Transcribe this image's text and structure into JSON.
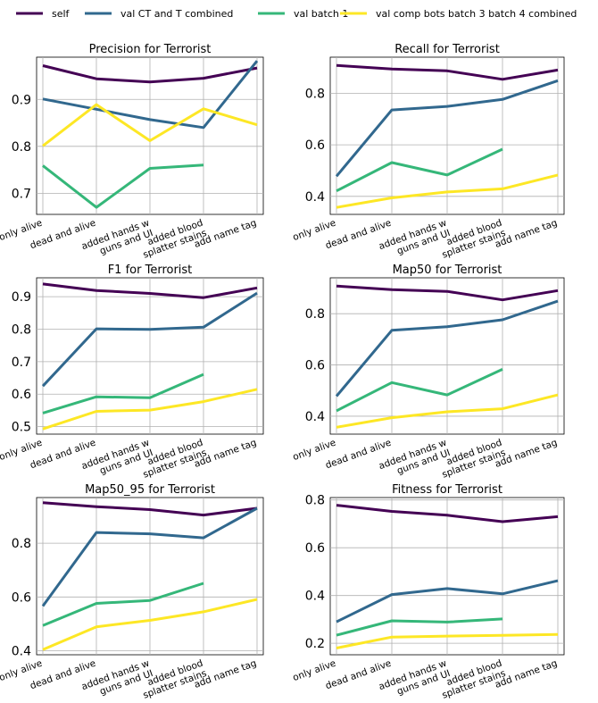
{
  "legend": {
    "items": [
      {
        "label": "self",
        "color": "#440154"
      },
      {
        "label": "val CT and T combined",
        "color": "#31688e"
      },
      {
        "label": "val batch 1",
        "color": "#35b779"
      },
      {
        "label": "val comp bots batch 3 batch 4 combined",
        "color": "#fde725"
      }
    ]
  },
  "chart_data": [
    {
      "type": "line",
      "title": "Precision for Terrorist",
      "categories": [
        [
          "only alive"
        ],
        [
          "dead and alive"
        ],
        [
          "added hands w",
          "guns and UI"
        ],
        [
          "added blood",
          "splatter stains"
        ],
        [
          "add name tag"
        ]
      ],
      "ylim": [
        0.655,
        0.99
      ],
      "yticks": [
        0.7,
        0.8,
        0.9
      ],
      "ytick_labels": [
        "0.7",
        "0.8",
        "0.9"
      ],
      "series": [
        {
          "name": "self",
          "color": "#440154",
          "values": [
            0.972,
            0.944,
            0.937,
            0.945,
            0.967
          ]
        },
        {
          "name": "val CT and T combined",
          "color": "#31688e",
          "values": [
            0.901,
            0.879,
            0.857,
            0.84,
            0.982
          ]
        },
        {
          "name": "val batch 1",
          "color": "#35b779",
          "values": [
            0.759,
            0.67,
            0.753,
            0.76,
            null
          ]
        },
        {
          "name": "val comp bots batch 3 batch 4 combined",
          "color": "#fde725",
          "values": [
            0.801,
            0.889,
            0.812,
            0.88,
            0.846
          ]
        }
      ]
    },
    {
      "type": "line",
      "title": "Recall for Terrorist",
      "categories": [
        [
          "only alive"
        ],
        [
          "dead and alive"
        ],
        [
          "added hands w",
          "guns and UI"
        ],
        [
          "added blood",
          "splatter stains"
        ],
        [
          "add name tag"
        ]
      ],
      "ylim": [
        0.33,
        0.94
      ],
      "yticks": [
        0.4,
        0.6,
        0.8
      ],
      "ytick_labels": [
        "0.4",
        "0.6",
        "0.8"
      ],
      "series": [
        {
          "name": "self",
          "color": "#440154",
          "values": [
            0.908,
            0.894,
            0.887,
            0.854,
            0.89
          ]
        },
        {
          "name": "val CT and T combined",
          "color": "#31688e",
          "values": [
            0.478,
            0.735,
            0.749,
            0.776,
            0.849
          ]
        },
        {
          "name": "val batch 1",
          "color": "#35b779",
          "values": [
            0.421,
            0.531,
            0.483,
            0.583,
            null
          ]
        },
        {
          "name": "val comp bots batch 3 batch 4 combined",
          "color": "#fde725",
          "values": [
            0.357,
            0.394,
            0.417,
            0.429,
            0.483
          ]
        }
      ]
    },
    {
      "type": "line",
      "title": "F1 for Terrorist",
      "categories": [
        [
          "only alive"
        ],
        [
          "dead and alive"
        ],
        [
          "added hands w",
          "guns and UI"
        ],
        [
          "added blood",
          "splatter stains"
        ],
        [
          "add name tag"
        ]
      ],
      "ylim": [
        0.477,
        0.958
      ],
      "yticks": [
        0.5,
        0.6,
        0.7,
        0.8,
        0.9
      ],
      "ytick_labels": [
        "0.5",
        "0.6",
        "0.7",
        "0.8",
        "0.9"
      ],
      "series": [
        {
          "name": "self",
          "color": "#440154",
          "values": [
            0.939,
            0.919,
            0.91,
            0.897,
            0.927
          ]
        },
        {
          "name": "val CT and T combined",
          "color": "#31688e",
          "values": [
            0.625,
            0.801,
            0.799,
            0.806,
            0.911
          ]
        },
        {
          "name": "val batch 1",
          "color": "#35b779",
          "values": [
            0.542,
            0.592,
            0.589,
            0.661,
            null
          ]
        },
        {
          "name": "val comp bots batch 3 batch 4 combined",
          "color": "#fde725",
          "values": [
            0.493,
            0.547,
            0.551,
            0.577,
            0.615
          ]
        }
      ]
    },
    {
      "type": "line",
      "title": "Map50 for Terrorist",
      "categories": [
        [
          "only alive"
        ],
        [
          "dead and alive"
        ],
        [
          "added hands w",
          "guns and UI"
        ],
        [
          "added blood",
          "splatter stains"
        ],
        [
          "add name tag"
        ]
      ],
      "ylim": [
        0.33,
        0.94
      ],
      "yticks": [
        0.4,
        0.6,
        0.8
      ],
      "ytick_labels": [
        "0.4",
        "0.6",
        "0.8"
      ],
      "series": [
        {
          "name": "self",
          "color": "#440154",
          "values": [
            0.908,
            0.894,
            0.887,
            0.854,
            0.89
          ]
        },
        {
          "name": "val CT and T combined",
          "color": "#31688e",
          "values": [
            0.478,
            0.735,
            0.749,
            0.776,
            0.849
          ]
        },
        {
          "name": "val batch 1",
          "color": "#35b779",
          "values": [
            0.421,
            0.531,
            0.483,
            0.583,
            null
          ]
        },
        {
          "name": "val comp bots batch 3 batch 4 combined",
          "color": "#fde725",
          "values": [
            0.357,
            0.394,
            0.417,
            0.429,
            0.483
          ]
        }
      ]
    },
    {
      "type": "line",
      "title": "Map50_95 for Terrorist",
      "categories": [
        [
          "only alive"
        ],
        [
          "dead and alive"
        ],
        [
          "added hands w",
          "guns and UI"
        ],
        [
          "added blood",
          "splatter stains"
        ],
        [
          "add name tag"
        ]
      ],
      "ylim": [
        0.385,
        0.97
      ],
      "yticks": [
        0.4,
        0.6,
        0.8
      ],
      "ytick_labels": [
        "0.4",
        "0.6",
        "0.8"
      ],
      "series": [
        {
          "name": "self",
          "color": "#440154",
          "values": [
            0.951,
            0.936,
            0.925,
            0.905,
            0.93
          ]
        },
        {
          "name": "val CT and T combined",
          "color": "#31688e",
          "values": [
            0.566,
            0.84,
            0.835,
            0.82,
            0.93
          ]
        },
        {
          "name": "val batch 1",
          "color": "#35b779",
          "values": [
            0.494,
            0.576,
            0.587,
            0.651,
            null
          ]
        },
        {
          "name": "val comp bots batch 3 batch 4 combined",
          "color": "#fde725",
          "values": [
            0.404,
            0.489,
            0.513,
            0.545,
            0.591
          ]
        }
      ]
    },
    {
      "type": "line",
      "title": "Fitness for Terrorist",
      "categories": [
        [
          "only alive"
        ],
        [
          "dead and alive"
        ],
        [
          "added hands w",
          "guns and UI"
        ],
        [
          "added blood",
          "splatter stains"
        ],
        [
          "add name tag"
        ]
      ],
      "ylim": [
        0.152,
        0.81
      ],
      "yticks": [
        0.2,
        0.4,
        0.6,
        0.8
      ],
      "ytick_labels": [
        "0.2",
        "0.4",
        "0.6",
        "0.8"
      ],
      "series": [
        {
          "name": "self",
          "color": "#440154",
          "values": [
            0.778,
            0.752,
            0.736,
            0.709,
            0.73
          ]
        },
        {
          "name": "val CT and T combined",
          "color": "#31688e",
          "values": [
            0.29,
            0.404,
            0.429,
            0.407,
            0.462
          ]
        },
        {
          "name": "val batch 1",
          "color": "#35b779",
          "values": [
            0.234,
            0.294,
            0.289,
            0.302,
            null
          ]
        },
        {
          "name": "val comp bots batch 3 batch 4 combined",
          "color": "#fde725",
          "values": [
            0.18,
            0.226,
            0.23,
            0.233,
            0.237
          ]
        }
      ]
    }
  ]
}
